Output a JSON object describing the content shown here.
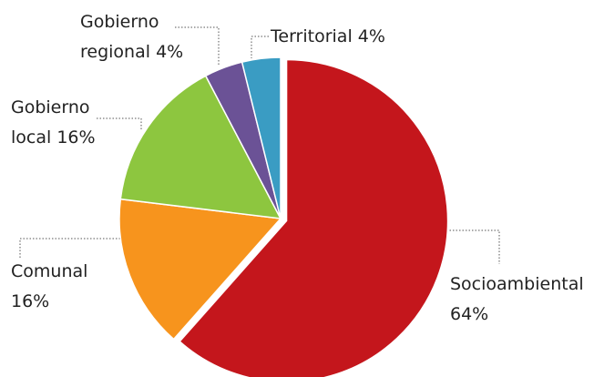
{
  "chart_data": {
    "type": "pie",
    "categories": [
      "Socioambiental",
      "Comunal",
      "Gobierno local",
      "Gobierno regional",
      "Territorial"
    ],
    "values": [
      64,
      16,
      16,
      4,
      4
    ],
    "value_labels": [
      "64%",
      "16%",
      "16%",
      "4%",
      "4%"
    ],
    "colors": [
      "#c4161c",
      "#f7941d",
      "#8dc63f",
      "#6b5296",
      "#3a9cc3"
    ]
  }
}
